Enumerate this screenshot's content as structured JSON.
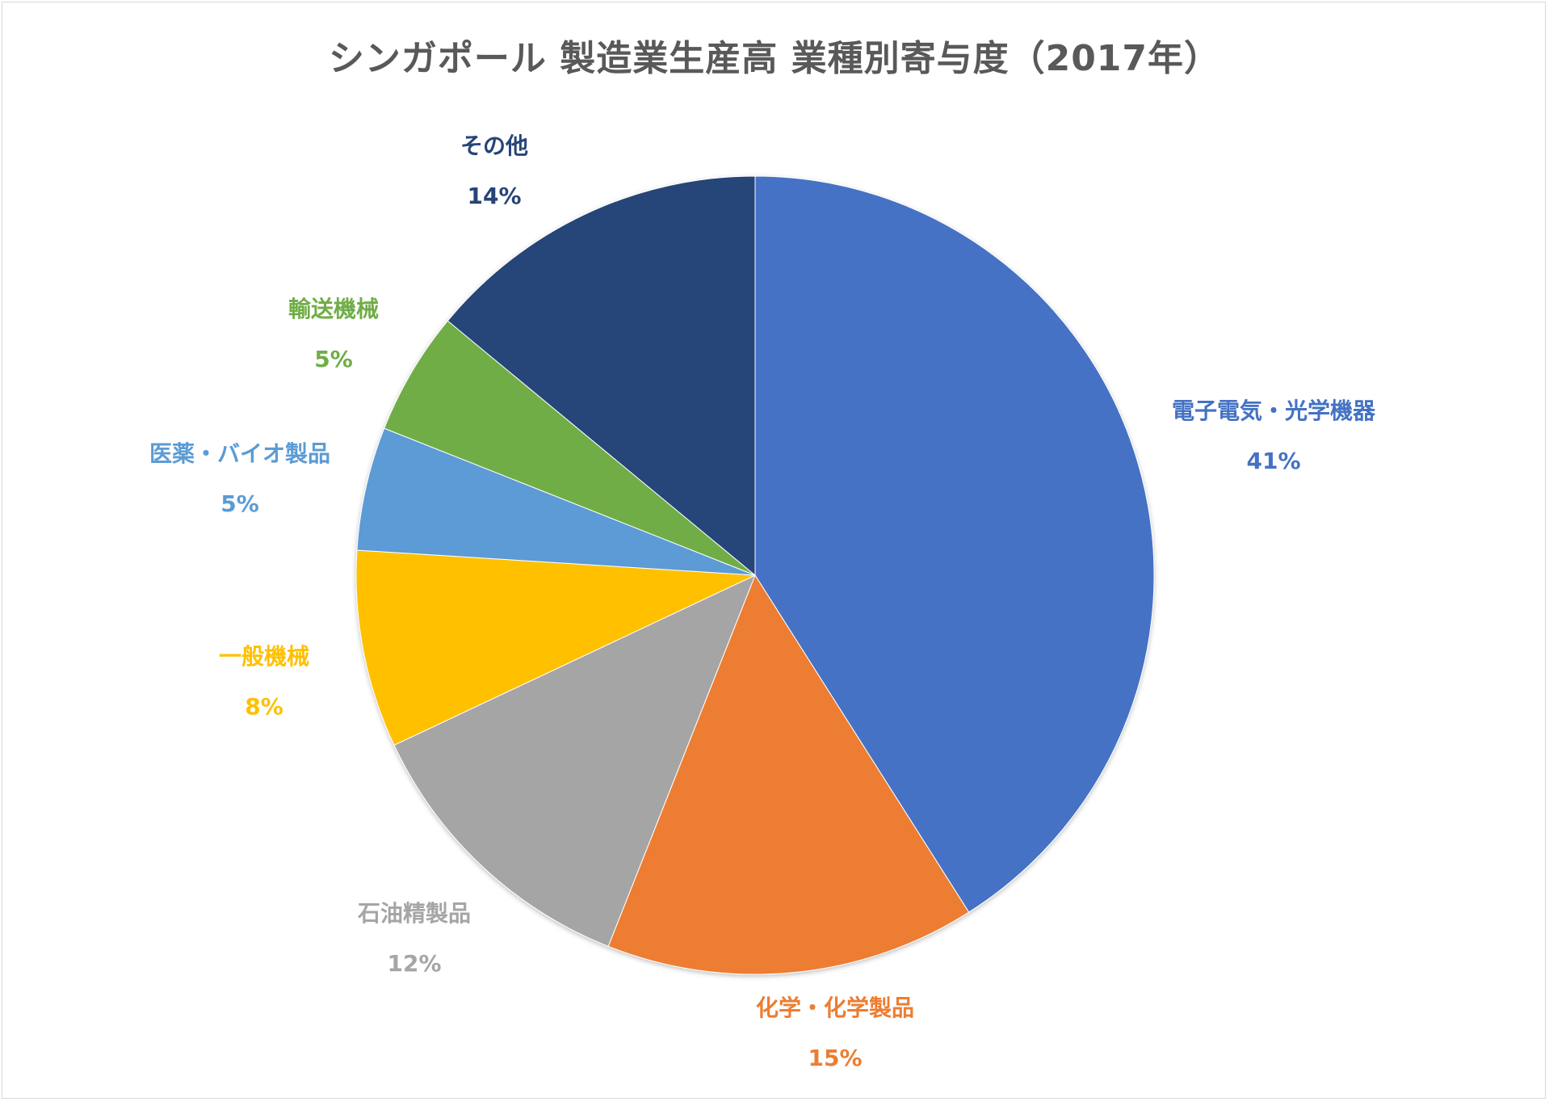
{
  "chart_data": {
    "type": "pie",
    "title": "シンガポール 製造業生産高 業種別寄与度（2017年）",
    "slices": [
      {
        "name": "電子電気・光学機器",
        "value": 41,
        "label": "41%",
        "color": "#4472C4"
      },
      {
        "name": "化学・化学製品",
        "value": 15,
        "label": "15%",
        "color": "#ED7D31"
      },
      {
        "name": "石油精製品",
        "value": 12,
        "label": "12%",
        "color": "#A5A5A5"
      },
      {
        "name": "一般機械",
        "value": 8,
        "label": "8%",
        "color": "#FFC000"
      },
      {
        "name": "医薬・バイオ製品",
        "value": 5,
        "label": "5%",
        "color": "#5B9BD5"
      },
      {
        "name": "輸送機械",
        "value": 5,
        "label": "5%",
        "color": "#70AD47"
      },
      {
        "name": "その他",
        "value": 14,
        "label": "14%",
        "color": "#264478"
      }
    ]
  }
}
